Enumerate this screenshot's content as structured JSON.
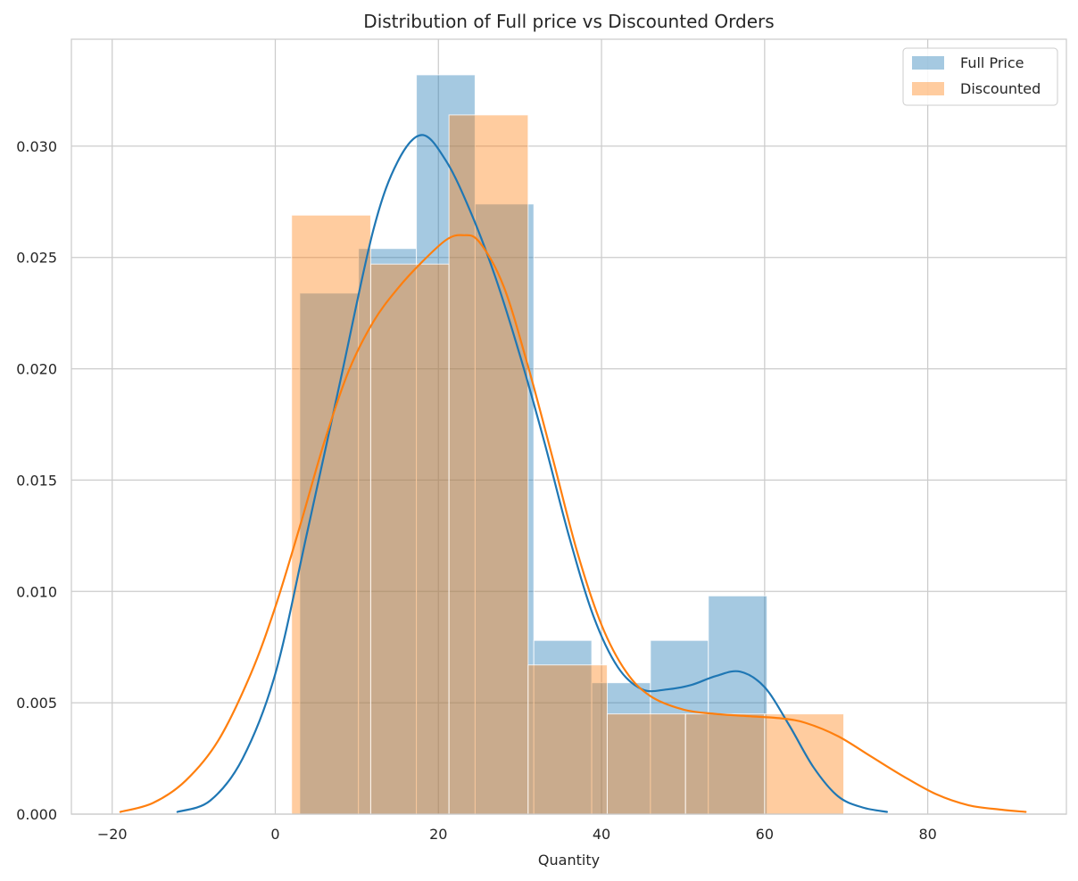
{
  "chart_data": {
    "type": "bar",
    "title": "Distribution of Full price vs Discounted Orders",
    "xlabel": "Quantity",
    "ylabel": "",
    "xlim": [
      -25,
      97
    ],
    "ylim": [
      0,
      0.0348
    ],
    "xticks": [
      -20,
      0,
      20,
      40,
      60,
      80
    ],
    "xtick_labels": [
      "−20",
      "0",
      "20",
      "40",
      "60",
      "80"
    ],
    "yticks": [
      0,
      0.005,
      0.01,
      0.015,
      0.02,
      0.025,
      0.03
    ],
    "ytick_labels": [
      "0.000",
      "0.005",
      "0.010",
      "0.015",
      "0.020",
      "0.025",
      "0.030"
    ],
    "grid": true,
    "legend_position": "top-right",
    "series": [
      {
        "name": "Full Price",
        "color": "#1f77b4",
        "hist_edges": [
          3,
          10.2,
          17.3,
          24.5,
          31.7,
          38.8,
          46,
          53.1,
          60.3
        ],
        "hist_values": [
          0.0234,
          0.0254,
          0.0332,
          0.0274,
          0.0078,
          0.0059,
          0.0078,
          0.0098
        ],
        "kde": [
          [
            -12,
            0.0001
          ],
          [
            -8,
            0.0006
          ],
          [
            -4,
            0.0025
          ],
          [
            0,
            0.0063
          ],
          [
            4,
            0.0128
          ],
          [
            8,
            0.0195
          ],
          [
            12,
            0.0262
          ],
          [
            15,
            0.0293
          ],
          [
            18,
            0.0305
          ],
          [
            21,
            0.0293
          ],
          [
            24,
            0.027
          ],
          [
            27,
            0.0241
          ],
          [
            30,
            0.0206
          ],
          [
            33,
            0.0167
          ],
          [
            36,
            0.0125
          ],
          [
            39,
            0.0089
          ],
          [
            42,
            0.0066
          ],
          [
            45,
            0.0056
          ],
          [
            48,
            0.0056
          ],
          [
            51,
            0.0058
          ],
          [
            54,
            0.0062
          ],
          [
            57,
            0.0064
          ],
          [
            60,
            0.0057
          ],
          [
            63,
            0.004
          ],
          [
            66,
            0.0021
          ],
          [
            69,
            0.0008
          ],
          [
            72,
            0.0003
          ],
          [
            75,
            0.0001
          ]
        ]
      },
      {
        "name": "Discounted",
        "color": "#ff7f0e",
        "hist_edges": [
          2,
          11.7,
          21.3,
          31,
          40.7,
          50.3,
          60,
          69.7
        ],
        "hist_values": [
          0.0269,
          0.0247,
          0.0314,
          0.0067,
          0.0045,
          0.0045,
          0.0045
        ],
        "kde": [
          [
            -19,
            0.0001
          ],
          [
            -15,
            0.0005
          ],
          [
            -11,
            0.0015
          ],
          [
            -7,
            0.0033
          ],
          [
            -3,
            0.0063
          ],
          [
            0,
            0.0093
          ],
          [
            3,
            0.0129
          ],
          [
            6,
            0.0167
          ],
          [
            9,
            0.0199
          ],
          [
            12,
            0.0221
          ],
          [
            15,
            0.0236
          ],
          [
            18,
            0.0248
          ],
          [
            21,
            0.0258
          ],
          [
            23,
            0.026
          ],
          [
            25,
            0.0257
          ],
          [
            28,
            0.0237
          ],
          [
            31,
            0.0201
          ],
          [
            34,
            0.016
          ],
          [
            37,
            0.0118
          ],
          [
            40,
            0.0085
          ],
          [
            43,
            0.0064
          ],
          [
            46,
            0.0053
          ],
          [
            50,
            0.0047
          ],
          [
            54,
            0.0045
          ],
          [
            58,
            0.0044
          ],
          [
            62,
            0.0043
          ],
          [
            65,
            0.0041
          ],
          [
            69,
            0.0035
          ],
          [
            73,
            0.0026
          ],
          [
            77,
            0.0017
          ],
          [
            81,
            0.0009
          ],
          [
            85,
            0.0004
          ],
          [
            89,
            0.0002
          ],
          [
            92,
            0.0001
          ]
        ]
      }
    ]
  }
}
